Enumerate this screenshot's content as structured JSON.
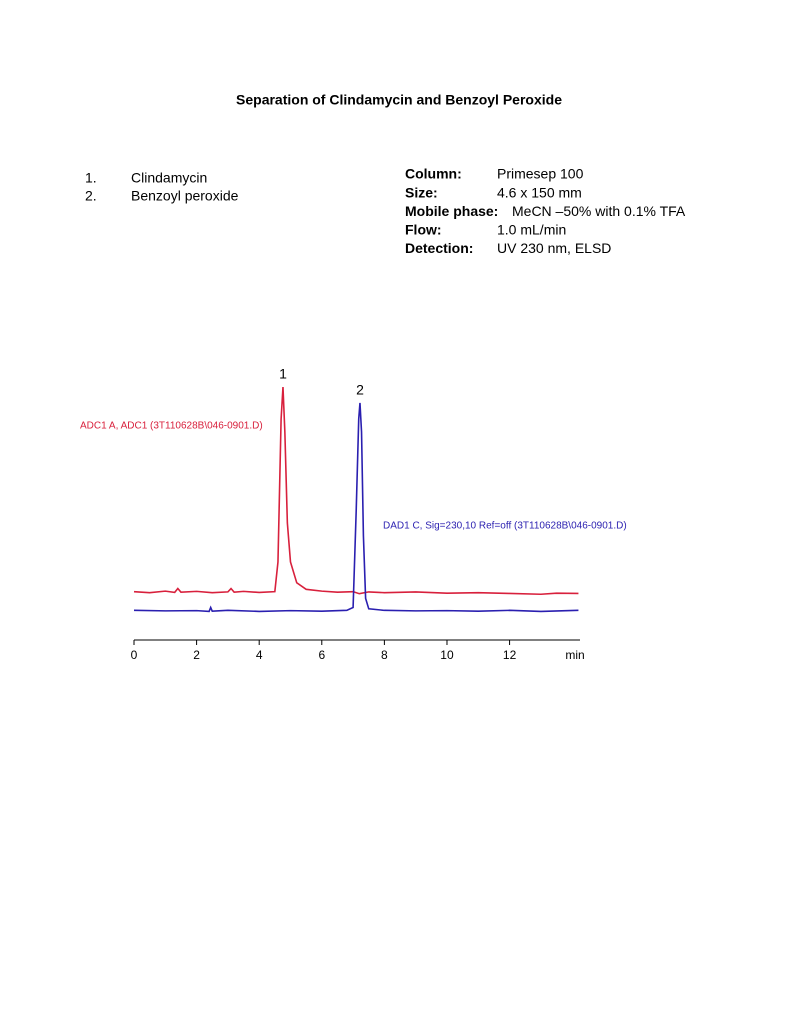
{
  "compounds": [
    {
      "number": "1.",
      "name": "Clindamycin"
    },
    {
      "number": "2.",
      "name": "Benzoyl peroxide"
    }
  ],
  "conditions": [
    {
      "label": "Column:",
      "value": "Primesep 100"
    },
    {
      "label": "Size:",
      "value": "4.6 x 150 mm"
    },
    {
      "label": "Mobile phase:",
      "value": "MeCN –50% with 0.1% TFA"
    },
    {
      "label": "Flow:",
      "value": "1.0 mL/min"
    },
    {
      "label": "Detection:",
      "value": "UV 230 nm, ELSD"
    }
  ],
  "chart_data": {
    "type": "line",
    "title": "Separation of Clindamycin and Benzoyl Peroxide",
    "xlabel": "min",
    "xlim": [
      0,
      14.25
    ],
    "xticks": [
      0,
      2,
      4,
      6,
      8,
      10,
      12
    ],
    "ylim": [
      0,
      100
    ],
    "peak_labels": [
      {
        "text": "1",
        "x": 4.76
      },
      {
        "text": "2",
        "x": 7.22
      }
    ],
    "series": [
      {
        "name": "ADC1 A, ADC1 (3T110628B\\046-0901.D)",
        "color": "#d8203c",
        "x": [
          0,
          0.5,
          1.0,
          1.3,
          1.4,
          1.5,
          2.0,
          2.5,
          3.0,
          3.1,
          3.2,
          3.5,
          4.0,
          4.5,
          4.6,
          4.7,
          4.76,
          4.82,
          4.9,
          5.0,
          5.2,
          5.5,
          6.0,
          6.5,
          7.0,
          7.2,
          7.5,
          8.0,
          9.0,
          10.0,
          11.0,
          12.0,
          13.0,
          13.5,
          14.2
        ],
        "values": [
          18.6,
          18.2,
          18.8,
          18.3,
          19.8,
          18.4,
          18.7,
          18.2,
          18.5,
          19.8,
          18.4,
          18.7,
          18.3,
          18.6,
          30,
          85,
          97.3,
          80,
          45,
          30,
          22,
          19.5,
          18.8,
          18.4,
          18.6,
          17.8,
          18.5,
          18.2,
          18.5,
          18.0,
          18.2,
          17.9,
          17.6,
          18.0,
          17.9
        ]
      },
      {
        "name": "DAD1 C, Sig=230,10 Ref=off (3T110628B\\046-0901.D)",
        "color": "#2a1fb0",
        "x": [
          0,
          1.0,
          2.0,
          2.4,
          2.45,
          2.5,
          3.0,
          4.0,
          5.0,
          6.0,
          6.8,
          7.0,
          7.1,
          7.18,
          7.22,
          7.27,
          7.33,
          7.4,
          7.5,
          8.0,
          9.0,
          10.0,
          11.0,
          12.0,
          13.0,
          14.2
        ],
        "values": [
          11.4,
          11.2,
          11.3,
          11.0,
          12.5,
          11.1,
          11.4,
          11.0,
          11.3,
          11.1,
          11.4,
          12.5,
          50,
          85,
          91.2,
          80,
          40,
          16,
          12,
          11.4,
          11.2,
          11.3,
          11.1,
          11.4,
          11.0,
          11.4
        ]
      }
    ]
  }
}
